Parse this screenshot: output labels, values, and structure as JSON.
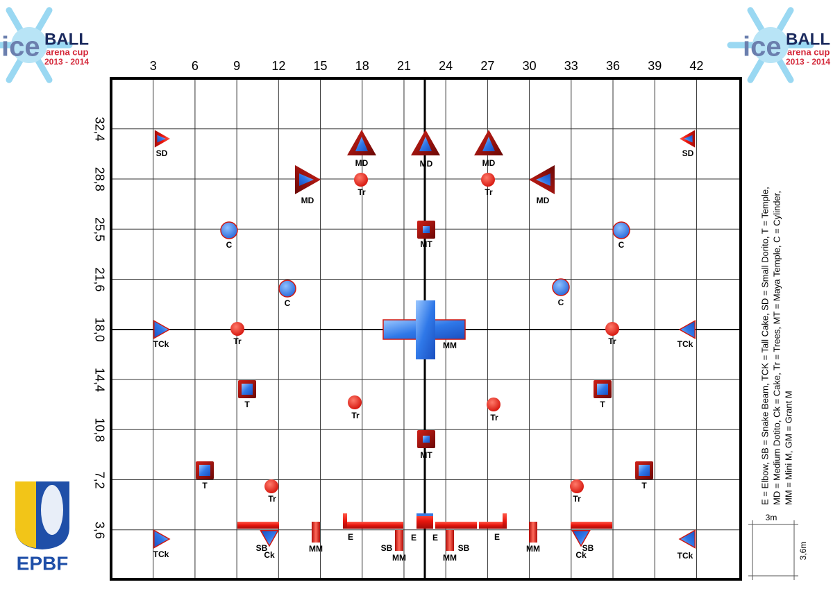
{
  "logo": {
    "ice": "ice",
    "ball": "BALL",
    "cup": "arena cup",
    "years": "2013 - 2014",
    "federation": "EPBF"
  },
  "field": {
    "columns": [
      "3",
      "6",
      "9",
      "12",
      "15",
      "18",
      "21",
      "24",
      "27",
      "30",
      "33",
      "36",
      "39",
      "42"
    ],
    "rows": [
      "32,4",
      "28,8",
      "25,5",
      "21,6",
      "18,0",
      "14,4",
      "10,8",
      "7,2",
      "3,6"
    ],
    "bunkers": [
      "SD",
      "MD",
      "MD",
      "MD",
      "SD",
      "MD",
      "Tr",
      "Tr",
      "MD",
      "C",
      "MT",
      "C",
      "C",
      "C",
      "TCk",
      "Tr",
      "MM",
      "Tr",
      "TCk",
      "T",
      "Tr",
      "Tr",
      "T",
      "MT",
      "T",
      "Tr",
      "Tr",
      "T",
      "TCk",
      "SB",
      "Ck",
      "MM",
      "E",
      "SB",
      "MM",
      "E",
      "E",
      "MM",
      "SB",
      "E",
      "MM",
      "SB",
      "Ck",
      "TCk"
    ]
  },
  "legend": [
    "E = Elbow, SB = Snake Beam, TCK = Tall Cake, SD = Small Dorito, T = Temple,",
    "MD = Medium Dotito, Ck = Cake, Tr = Trees, MT = Maya Temple, C = Cylinder,",
    "MM = Mini M, GM = Grant M"
  ],
  "scale": {
    "width": "3m",
    "height": "3,6m"
  }
}
